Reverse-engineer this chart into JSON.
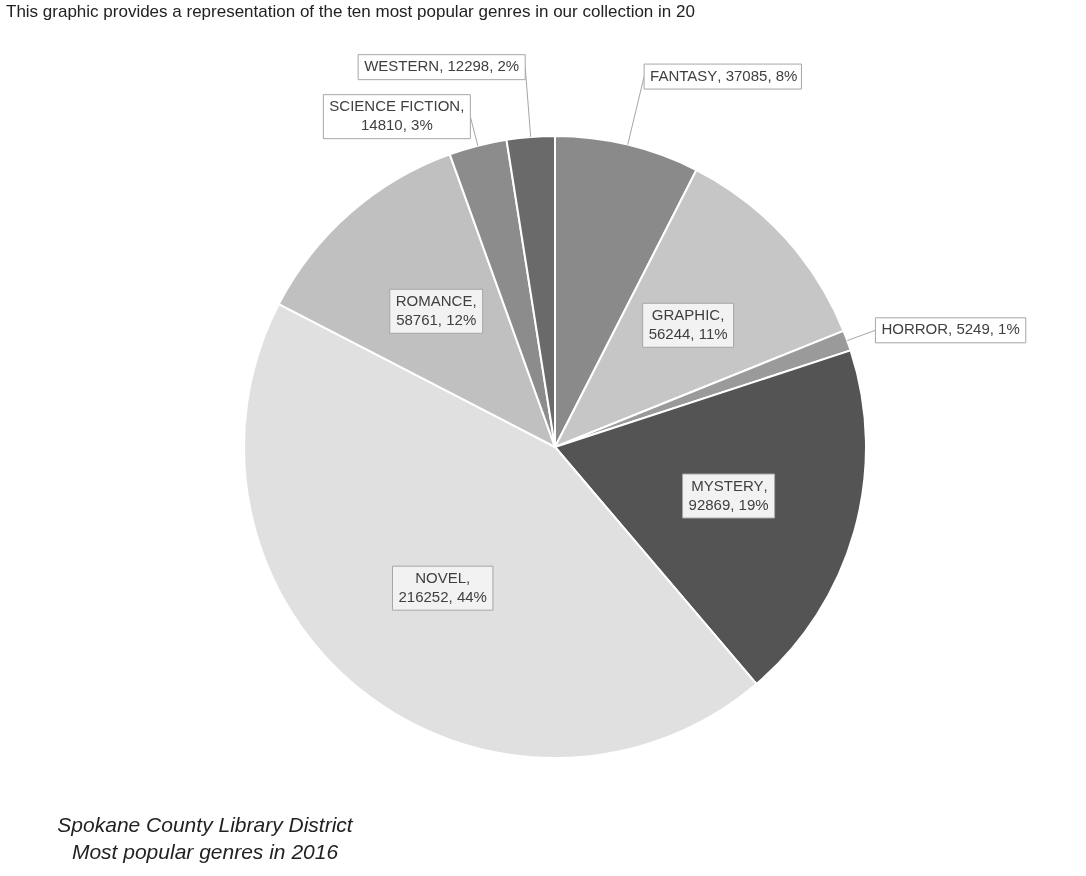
{
  "chart_data": {
    "type": "pie",
    "title": "This graphic provides a representation of the ten most popular genres in our collection in 20",
    "categories": [
      "FANTASY",
      "GRAPHIC",
      "HORROR",
      "MYSTERY",
      "NOVEL",
      "ROMANCE",
      "SCIENCE FICTION",
      "WESTERN"
    ],
    "values": [
      37085,
      56244,
      5249,
      92869,
      216252,
      58761,
      14810,
      12298
    ],
    "value_labels": [
      ", 37085, 8%",
      ", 56244, 11%",
      ", 5249, 1%",
      ", 92869, 19%",
      ", 216252, 44%",
      ", 58761, 12%",
      ", 14810, 3%",
      ", 12298, 2%"
    ],
    "colors": [
      "#8a8a8a",
      "#c6c6c6",
      "#9a9a9a",
      "#545454",
      "#e0e0e0",
      "#c0c0c0",
      "#8c8c8c",
      "#6a6a6a"
    ],
    "annotations": [
      "Spokane County Library District",
      "Most popular genres in 2016"
    ],
    "legend": false
  }
}
